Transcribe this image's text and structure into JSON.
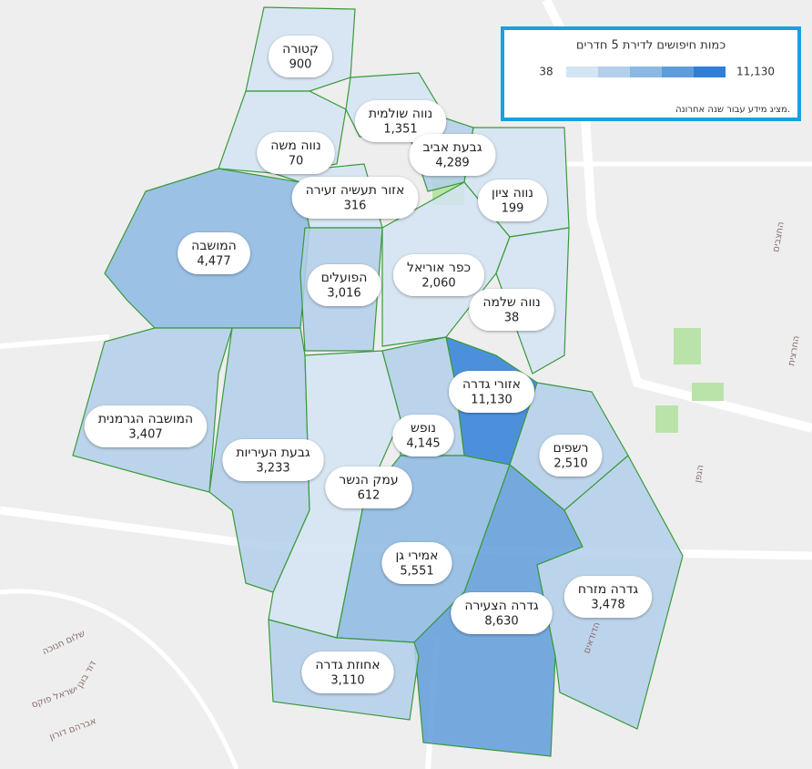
{
  "legend": {
    "title": "כמות חיפושים לדירת 5 חדרים",
    "min": {
      "value": 38,
      "label": "38"
    },
    "max": {
      "value": 11130,
      "label": "11,130"
    },
    "colors": [
      "#d3e4f3",
      "#b3cfea",
      "#8cb8e3",
      "#5f9cdb",
      "#2f7fd8"
    ],
    "note": "מציג מידע עבור שנה אחרונה."
  },
  "neighborhoods": [
    {
      "name": "קטורה",
      "value": 900
    },
    {
      "name": "נווה שולמית",
      "value": 1351,
      "label": "1,351"
    },
    {
      "name": "נווה משה",
      "value": 70
    },
    {
      "name": "גבעת אביב",
      "value": 4289,
      "label": "4,289"
    },
    {
      "name": "נווה ציון",
      "value": 199
    },
    {
      "name": "אזור תעשיה זעירה",
      "value": 316
    },
    {
      "name": "המושבה",
      "value": 4477,
      "label": "4,477"
    },
    {
      "name": "הפועלים",
      "value": 3016,
      "label": "3,016"
    },
    {
      "name": "כפר אוריאל",
      "value": 2060,
      "label": "2,060"
    },
    {
      "name": "נווה שלמה",
      "value": 38
    },
    {
      "name": "המושבה הגרמנית",
      "value": 3407,
      "label": "3,407"
    },
    {
      "name": "גבעת העיריות",
      "value": 3233,
      "label": "3,233"
    },
    {
      "name": "עמק הנשר",
      "value": 612
    },
    {
      "name": "אזורי גדרה",
      "value": 11130,
      "label": "11,130"
    },
    {
      "name": "נופש",
      "value": 4145,
      "label": "4,145"
    },
    {
      "name": "רשפים",
      "value": 2510,
      "label": "2,510"
    },
    {
      "name": "אמירי גן",
      "value": 5551,
      "label": "5,551"
    },
    {
      "name": "גדרה הצעירה",
      "value": 8630,
      "label": "8,630"
    },
    {
      "name": "גדרה מזרח",
      "value": 3478,
      "label": "3,478"
    },
    {
      "name": "אחוזת גדרה",
      "value": 3110,
      "label": "3,110"
    }
  ],
  "streets": [
    "הגפן",
    "החרצית",
    "החצבים",
    "ישראל פוקס",
    "אברהם דורון",
    "דוד בוגן",
    "שלום חנוכה",
    "הדודאים"
  ]
}
